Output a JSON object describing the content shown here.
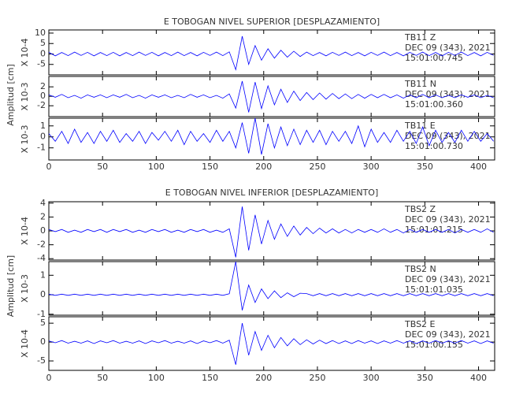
{
  "chart_data": [
    {
      "type": "line",
      "title": "E TOBOGAN NIVEL SUPERIOR [DESPLAZAMIENTO]",
      "ylabel": "Amplitud [cm]",
      "xlim": [
        0,
        415
      ],
      "xticks": [
        0,
        50,
        100,
        150,
        200,
        250,
        300,
        350,
        400
      ],
      "x": [
        0,
        6,
        12,
        18,
        24,
        30,
        36,
        42,
        48,
        54,
        60,
        66,
        72,
        78,
        84,
        90,
        96,
        102,
        108,
        114,
        120,
        126,
        132,
        138,
        144,
        150,
        156,
        162,
        168,
        174,
        180,
        186,
        192,
        198,
        204,
        210,
        216,
        222,
        228,
        234,
        240,
        246,
        252,
        258,
        264,
        270,
        276,
        282,
        288,
        294,
        300,
        306,
        312,
        318,
        324,
        330,
        336,
        342,
        348,
        354,
        360,
        366,
        372,
        378,
        384,
        390,
        396,
        402,
        408,
        414
      ],
      "subplots": [
        {
          "scale": "X 10-4",
          "ylim": [
            -10,
            11.5
          ],
          "yticks": [
            10,
            5,
            0,
            -5
          ],
          "annotations": [
            "TB11   Z",
            "DEC 09 (343), 2021",
            "15:01:00.745"
          ],
          "series": [
            {
              "color": "#0000ff",
              "values": [
                0.8,
                -0.9,
                0.7,
                -0.8,
                0.9,
                -0.7,
                0.8,
                -0.9,
                0.7,
                -0.8,
                0.8,
                -0.9,
                0.7,
                -0.8,
                0.9,
                -0.7,
                0.8,
                -0.9,
                0.7,
                -0.8,
                0.9,
                -0.8,
                0.7,
                -0.9,
                0.8,
                -0.7,
                0.9,
                -0.8,
                1.0,
                -7.5,
                8.5,
                -5,
                4,
                -3,
                2.5,
                -2,
                1.8,
                -1.5,
                1.3,
                -1.2,
                0.9,
                -0.8,
                0.7,
                -0.9,
                0.8,
                -0.7,
                0.9,
                -0.8,
                0.7,
                -0.9,
                0.8,
                -0.7,
                0.9,
                -0.8,
                0.7,
                -0.9,
                0.8,
                -0.7,
                0.9,
                -0.8,
                0.7,
                -0.9,
                0.8,
                -0.7,
                0.9,
                -0.8,
                0.7,
                -0.9,
                0.8,
                -0.7
              ]
            }
          ]
        },
        {
          "scale": "X 10-3",
          "ylim": [
            -4.3,
            4.2
          ],
          "yticks": [
            2,
            0,
            -2
          ],
          "annotations": [
            "TB11   N",
            "DEC 09 (343), 2021",
            "15:01:00.360"
          ],
          "series": [
            {
              "color": "#0000ff",
              "values": [
                0.3,
                -0.2,
                0.4,
                -0.3,
                0.2,
                -0.4,
                0.3,
                -0.2,
                0.3,
                -0.3,
                0.3,
                -0.2,
                0.4,
                -0.3,
                0.2,
                -0.4,
                0.3,
                -0.2,
                0.3,
                -0.3,
                0.2,
                -0.3,
                0.4,
                -0.2,
                0.3,
                -0.3,
                0.2,
                -0.4,
                0.5,
                -2.5,
                3.2,
                -3.4,
                3.0,
                -2.6,
                2.2,
                -1.8,
                1.5,
                -1.3,
                1.1,
                -0.9,
                0.8,
                -0.7,
                0.7,
                -0.6,
                0.6,
                -0.5,
                0.5,
                -0.5,
                0.4,
                -0.4,
                0.4,
                -0.3,
                0.4,
                -0.3,
                0.3,
                -0.4,
                0.3,
                -0.3,
                0.4,
                -0.3,
                0.3,
                -0.3,
                0.2,
                -0.3,
                0.3,
                -0.2,
                0.3,
                -0.3,
                0.2,
                -0.3
              ]
            }
          ]
        },
        {
          "scale": "X 10-3",
          "ylim": [
            -2.1,
            1.7
          ],
          "yticks": [
            1,
            0,
            -1
          ],
          "annotations": [
            "TB11   E",
            "DEC 09 (343), 2021",
            "15:01:00.730"
          ],
          "series": [
            {
              "color": "#0000ff",
              "values": [
                0.3,
                -0.4,
                0.5,
                -0.6,
                0.7,
                -0.5,
                0.4,
                -0.6,
                0.5,
                -0.4,
                0.6,
                -0.5,
                0.3,
                -0.4,
                0.5,
                -0.6,
                0.4,
                -0.3,
                0.5,
                -0.4,
                0.6,
                -0.7,
                0.5,
                -0.4,
                0.3,
                -0.5,
                0.6,
                -0.4,
                0.5,
                -1.0,
                1.3,
                -1.5,
                1.7,
                -1.6,
                1.2,
                -1.0,
                0.9,
                -0.8,
                0.7,
                -0.7,
                0.6,
                -0.5,
                0.6,
                -0.7,
                0.5,
                -0.4,
                0.5,
                -0.6,
                1.0,
                -0.9,
                0.7,
                -0.5,
                0.4,
                -0.5,
                0.6,
                -0.4,
                0.5,
                -0.6,
                0.9,
                -0.8,
                0.6,
                -0.5,
                0.4,
                -0.5,
                0.6,
                -0.4,
                0.5,
                -0.4,
                0.3,
                -0.4
              ]
            }
          ]
        }
      ]
    },
    {
      "type": "line",
      "title": "E TOBOGAN NIVEL INFERIOR [DESPLAZAMIENTO]",
      "ylabel": "Amplitud [cm]",
      "xlim": [
        0,
        415
      ],
      "xticks": [
        0,
        50,
        100,
        150,
        200,
        250,
        300,
        350,
        400
      ],
      "x": [
        0,
        6,
        12,
        18,
        24,
        30,
        36,
        42,
        48,
        54,
        60,
        66,
        72,
        78,
        84,
        90,
        96,
        102,
        108,
        114,
        120,
        126,
        132,
        138,
        144,
        150,
        156,
        162,
        168,
        174,
        180,
        186,
        192,
        198,
        204,
        210,
        216,
        222,
        228,
        234,
        240,
        246,
        252,
        258,
        264,
        270,
        276,
        282,
        288,
        294,
        300,
        306,
        312,
        318,
        324,
        330,
        336,
        342,
        348,
        354,
        360,
        366,
        372,
        378,
        384,
        390,
        396,
        402,
        408,
        414
      ],
      "subplots": [
        {
          "scale": "X 10-4",
          "ylim": [
            -4.2,
            4.2
          ],
          "yticks": [
            4,
            2,
            0,
            -2,
            -4
          ],
          "annotations": [
            "TBS2   Z",
            "DEC 09 (343), 2021",
            "15:01:01.215"
          ],
          "series": [
            {
              "color": "#0000ff",
              "values": [
                0.2,
                -0.1,
                0.2,
                -0.2,
                0.1,
                -0.2,
                0.2,
                -0.1,
                0.2,
                -0.2,
                0.2,
                -0.1,
                0.2,
                -0.2,
                0.1,
                -0.2,
                0.2,
                -0.1,
                0.2,
                -0.2,
                0.1,
                -0.2,
                0.2,
                -0.1,
                0.2,
                -0.2,
                0.1,
                -0.2,
                0.3,
                -3.8,
                3.5,
                -2.8,
                2.3,
                -1.9,
                1.5,
                -1.2,
                1.0,
                -0.8,
                0.7,
                -0.6,
                0.5,
                -0.4,
                0.4,
                -0.3,
                0.3,
                -0.3,
                0.2,
                -0.3,
                0.2,
                -0.2,
                0.2,
                -0.2,
                0.3,
                -0.2,
                0.2,
                -0.3,
                0.2,
                -0.2,
                0.2,
                -0.2,
                0.2,
                -0.2,
                0.2,
                -0.3,
                0.2,
                -0.2,
                0.2,
                -0.2,
                0.3,
                -0.2
              ]
            }
          ]
        },
        {
          "scale": "X 10-3",
          "ylim": [
            -1.05,
            1.7
          ],
          "yticks": [
            1,
            0,
            -1
          ],
          "annotations": [
            "TBS2   N",
            "DEC 09 (343), 2021",
            "15:01:01.035"
          ],
          "series": [
            {
              "color": "#0000ff",
              "values": [
                0.03,
                -0.03,
                0.03,
                -0.03,
                0.03,
                -0.03,
                0.03,
                -0.03,
                0.03,
                -0.03,
                0.03,
                -0.03,
                0.03,
                -0.03,
                0.03,
                -0.03,
                0.03,
                -0.03,
                0.03,
                -0.03,
                0.03,
                -0.03,
                0.03,
                -0.03,
                0.03,
                -0.03,
                0.03,
                -0.03,
                0.05,
                1.7,
                -0.8,
                0.5,
                -0.4,
                0.3,
                -0.2,
                0.2,
                -0.15,
                0.1,
                -0.1,
                0.08,
                0.06,
                -0.05,
                0.06,
                -0.05,
                0.06,
                -0.05,
                0.06,
                -0.05,
                0.06,
                -0.05,
                0.06,
                -0.05,
                0.06,
                -0.05,
                0.06,
                -0.05,
                0.06,
                -0.05,
                0.06,
                -0.05,
                0.06,
                -0.05,
                0.06,
                -0.05,
                0.06,
                -0.05,
                0.06,
                -0.05,
                0.06,
                -0.05
              ]
            }
          ]
        },
        {
          "scale": "X 10-4",
          "ylim": [
            -7.5,
            6.7
          ],
          "yticks": [
            5,
            0,
            -5
          ],
          "annotations": [
            "TBS2   E",
            "DEC 09 (343), 2021",
            "15:01:00.155"
          ],
          "series": [
            {
              "color": "#0000ff",
              "values": [
                0.3,
                -0.2,
                0.4,
                -0.3,
                0.2,
                -0.3,
                0.3,
                -0.4,
                0.3,
                -0.2,
                0.4,
                -0.3,
                0.2,
                -0.3,
                0.3,
                -0.4,
                0.3,
                -0.2,
                0.4,
                -0.3,
                0.2,
                -0.3,
                0.3,
                -0.4,
                0.3,
                -0.2,
                0.4,
                -0.3,
                0.5,
                -6.0,
                5.0,
                -3.5,
                2.8,
                -2.2,
                1.8,
                -1.5,
                1.2,
                -1.0,
                0.9,
                -0.7,
                0.6,
                -0.5,
                0.5,
                -0.4,
                0.4,
                -0.4,
                0.3,
                -0.4,
                0.4,
                -0.3,
                0.3,
                -0.4,
                0.3,
                -0.3,
                0.4,
                -0.3,
                0.3,
                -0.4,
                0.3,
                -0.3,
                0.4,
                -0.3,
                0.3,
                -0.3,
                0.4,
                -0.3,
                0.3,
                -0.4,
                0.3,
                -0.3
              ]
            }
          ]
        }
      ]
    }
  ]
}
